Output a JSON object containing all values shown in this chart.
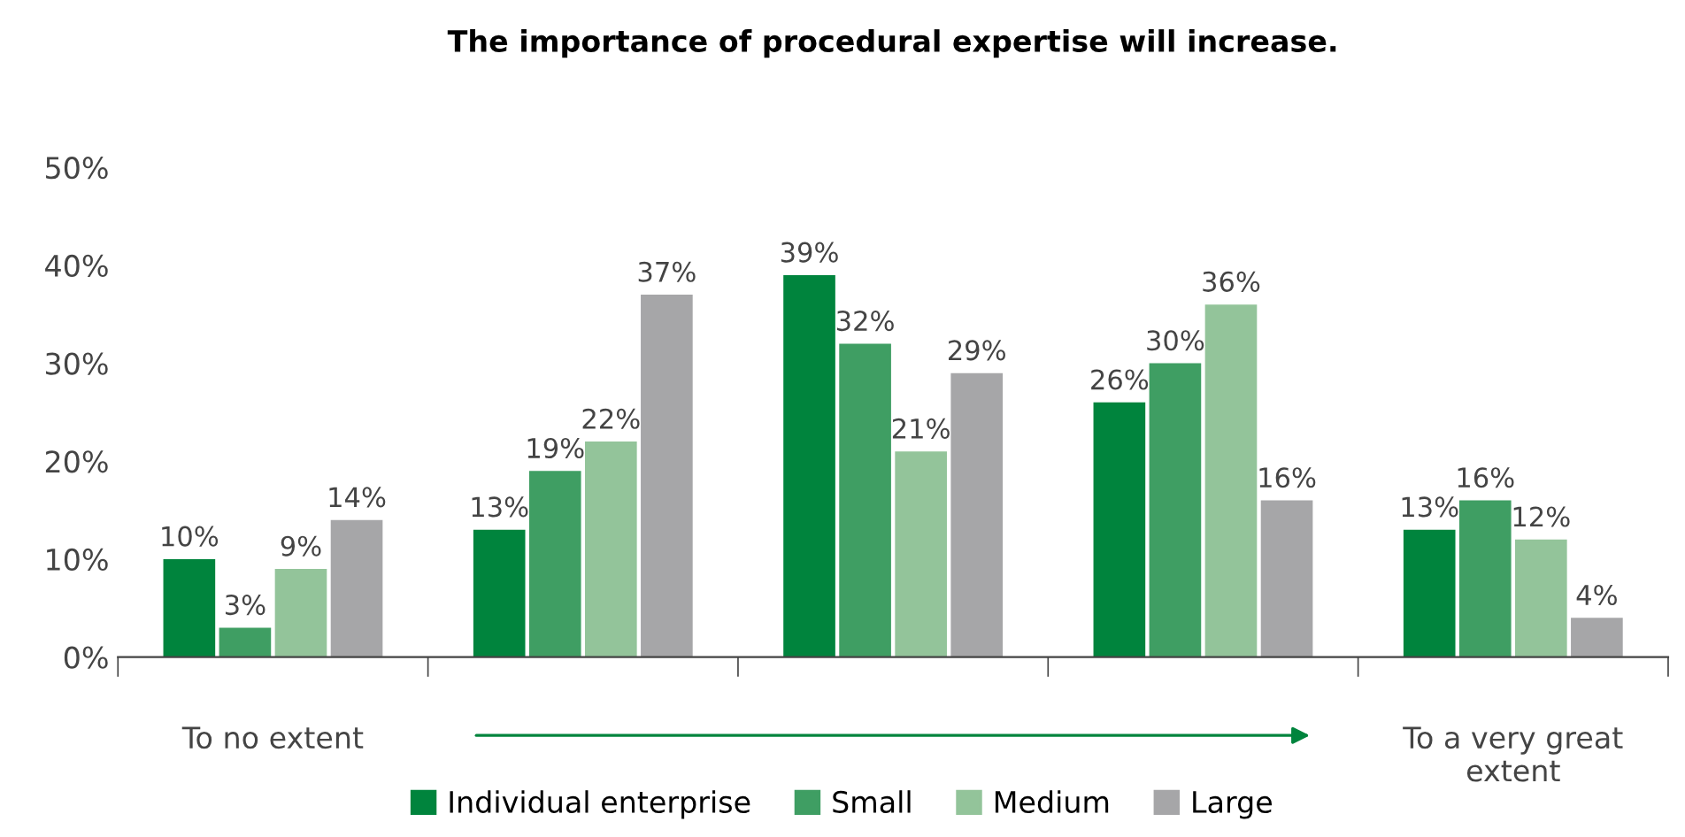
{
  "chart_data": {
    "type": "bar",
    "title": "The importance of procedural expertise will increase.",
    "categories": [
      "To no extent",
      null,
      null,
      null,
      "To a very great\nextent"
    ],
    "series": [
      {
        "name": "Individual enterprise",
        "color": "#00843d",
        "values": [
          10,
          13,
          39,
          26,
          13
        ],
        "value_labels": [
          "10%",
          "13%",
          "39%",
          "26%",
          "13%"
        ]
      },
      {
        "name": "Small",
        "color": "#3f9e63",
        "values": [
          3,
          19,
          32,
          30,
          16
        ],
        "value_labels": [
          "3%",
          "19%",
          "32%",
          "30%",
          "16%"
        ]
      },
      {
        "name": "Medium",
        "color": "#93c49a",
        "values": [
          9,
          22,
          21,
          36,
          12
        ],
        "value_labels": [
          "9%",
          "22%",
          "21%",
          "36%",
          "12%"
        ]
      },
      {
        "name": "Large",
        "color": "#a6a6a8",
        "values": [
          14,
          37,
          29,
          16,
          4
        ],
        "value_labels": [
          "14%",
          "37%",
          "29%",
          "16%",
          "4%"
        ]
      }
    ],
    "ylim": [
      0,
      50
    ],
    "yticks": [
      {
        "value": 0,
        "label": "0%"
      },
      {
        "value": 10,
        "label": "10%"
      },
      {
        "value": 20,
        "label": "20%"
      },
      {
        "value": 30,
        "label": "30%"
      },
      {
        "value": 40,
        "label": "40%"
      },
      {
        "value": 50,
        "label": "50%"
      }
    ],
    "grid": false,
    "legend": "bottom"
  }
}
